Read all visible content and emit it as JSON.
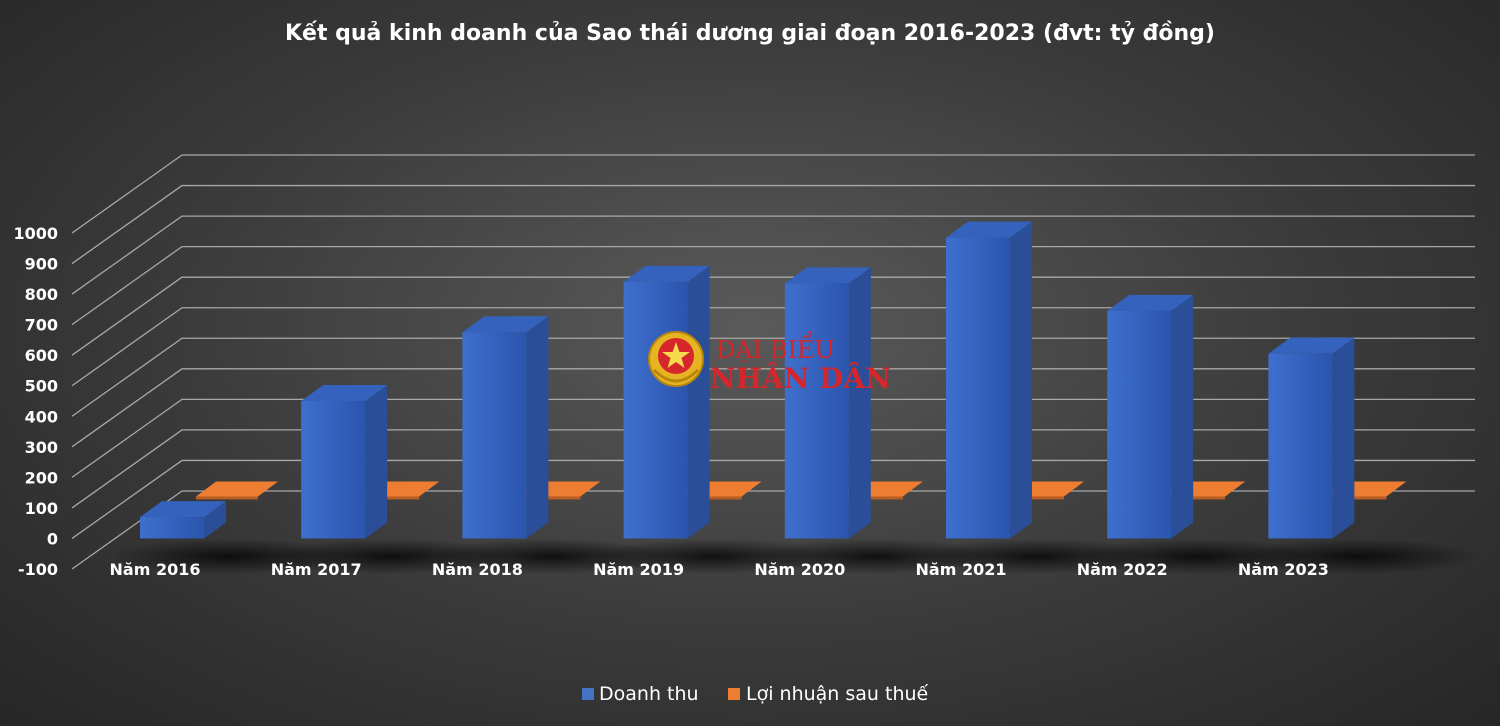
{
  "chart_data": {
    "type": "bar",
    "title": "Kết quả kinh doanh của Sao thái dương giai đoạn 2016-2023 (đvt: tỷ đồng)",
    "categories": [
      "Năm 2016",
      "Năm 2017",
      "Năm 2018",
      "Năm 2019",
      "Năm 2020",
      "Năm 2021",
      "Năm 2022",
      "Năm 2023"
    ],
    "series": [
      {
        "name": "Doanh thu",
        "values": [
          70,
          450,
          675,
          840,
          835,
          985,
          745,
          605
        ]
      },
      {
        "name": "Lợi nhuận sau thuế",
        "values": [
          25,
          35,
          40,
          45,
          35,
          50,
          25,
          20
        ]
      }
    ],
    "ylim": [
      -100,
      1000
    ],
    "yticks": [
      "1000",
      "900",
      "800",
      "700",
      "600",
      "500",
      "400",
      "300",
      "200",
      "100",
      "0",
      "-100"
    ],
    "grid": true,
    "legend_position": "bottom",
    "colors": {
      "Doanh thu": "#4472c4",
      "Lợi nhuận sau thuế": "#ed7d31"
    }
  },
  "watermark": {
    "line1": "ĐẠI BIỂU",
    "line2": "NHÂN DÂN",
    "emblem": "vietnam-emblem-icon"
  }
}
